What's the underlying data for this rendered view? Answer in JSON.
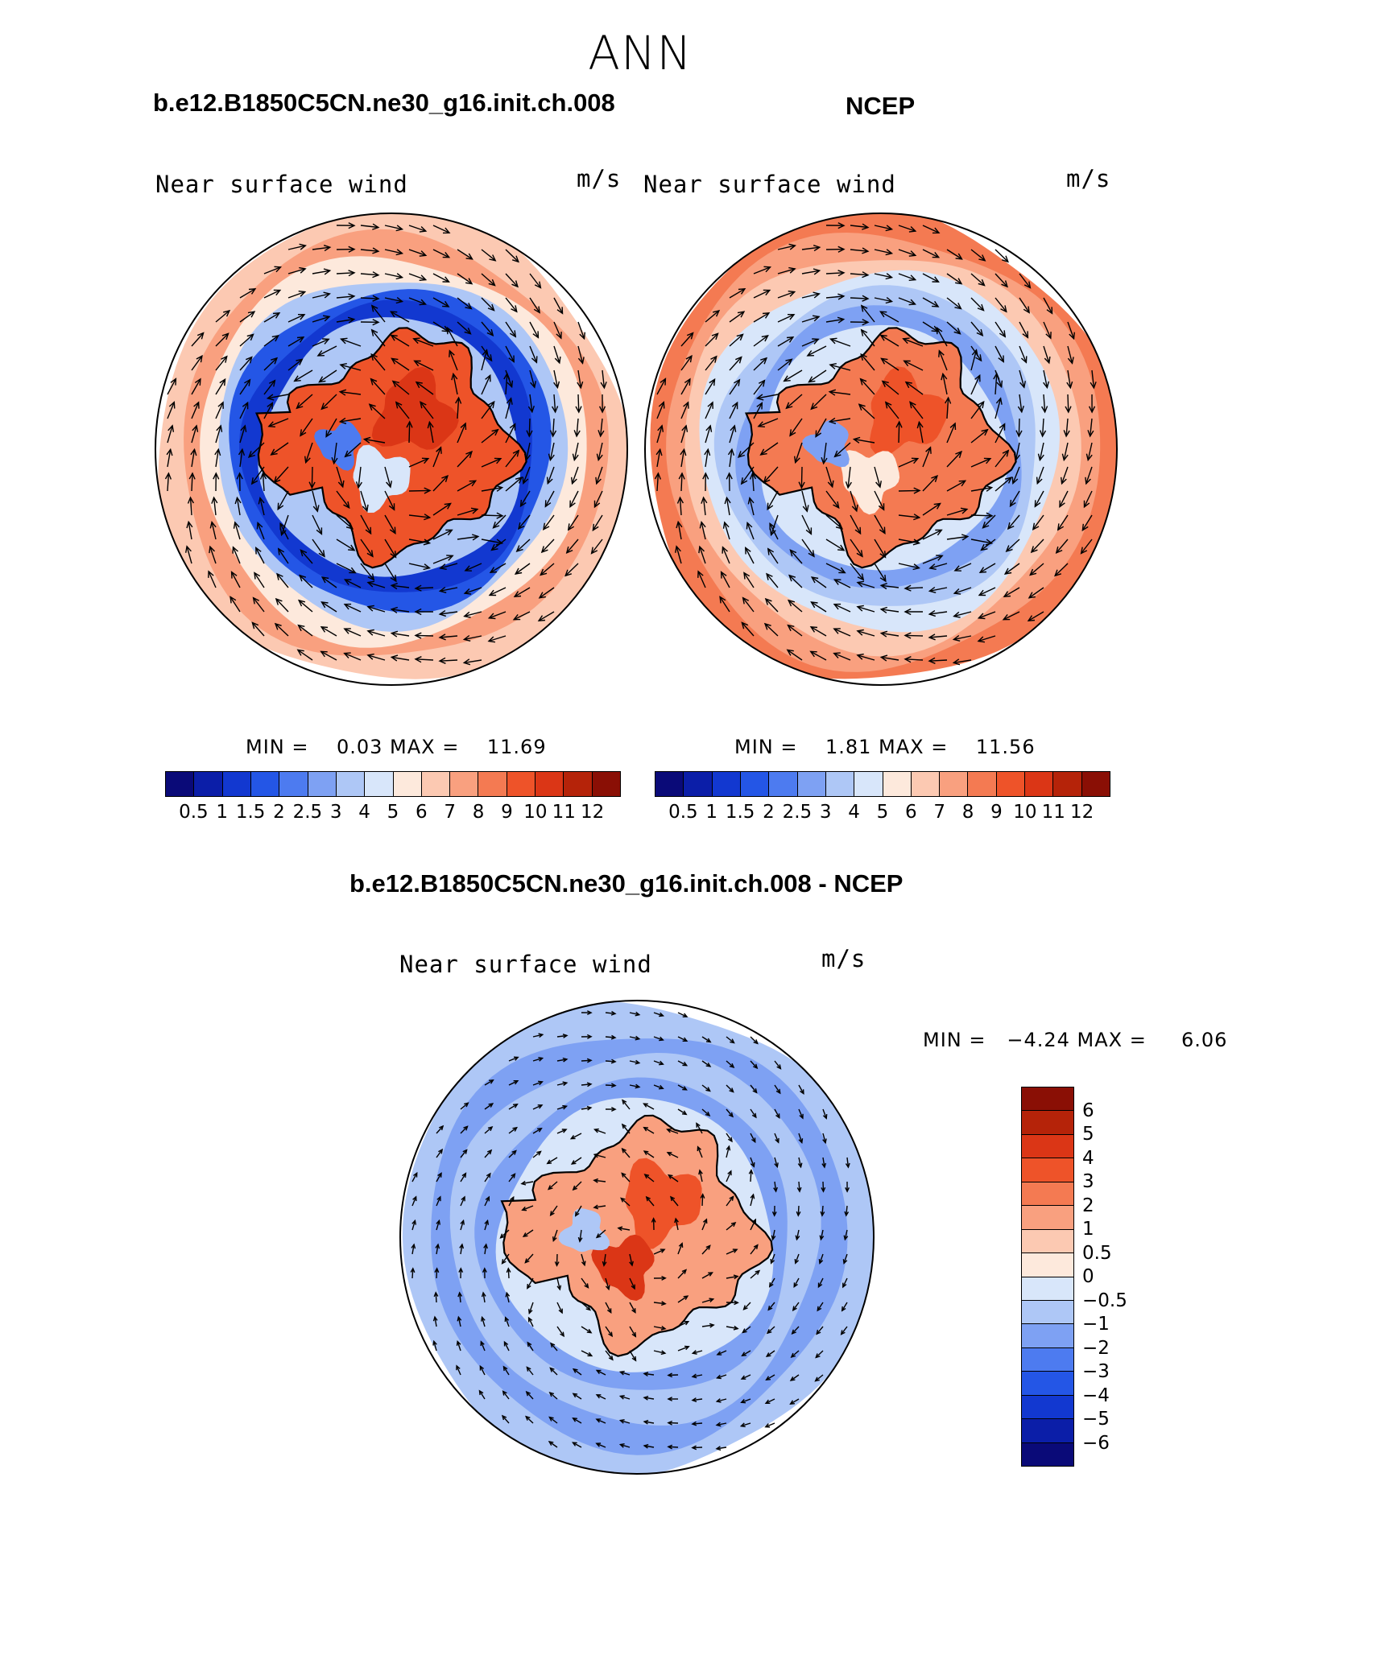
{
  "figure": {
    "season": "ANN"
  },
  "panels": [
    {
      "title": "b.e12.B1850C5CN.ne30_g16.init.ch.008",
      "left_label": "Near surface wind",
      "right_label": "m/s",
      "minmax": "MIN =    0.03 MAX =    11.69",
      "style": "model"
    },
    {
      "title": "NCEP",
      "left_label": "Near surface wind",
      "right_label": "m/s",
      "minmax": "MIN =    1.81 MAX =    11.56",
      "style": "obs"
    },
    {
      "title": "b.e12.B1850C5CN.ne30_g16.init.ch.008 - NCEP",
      "left_label": "Near surface wind",
      "right_label": "m/s",
      "minmax": "MIN =   −4.24 MAX =     6.06",
      "style": "diff"
    }
  ],
  "colorbar_abs": {
    "colors": [
      "#0a0a78",
      "#0b1ea8",
      "#1238d0",
      "#2456e6",
      "#4d7bf0",
      "#7ea1f3",
      "#aec7f6",
      "#d8e6fa",
      "#fde9dc",
      "#fcc9b2",
      "#f9a07f",
      "#f47a52",
      "#ee5329",
      "#db3616",
      "#b52309",
      "#8a0f05"
    ],
    "labels": [
      "0.5",
      "1",
      "1.5",
      "2",
      "2.5",
      "3",
      "4",
      "5",
      "6",
      "7",
      "8",
      "9",
      "10",
      "11",
      "12"
    ]
  },
  "colorbar_diff": {
    "colors": [
      "#8a0f05",
      "#b52309",
      "#db3616",
      "#ee5329",
      "#f47a52",
      "#f9a07f",
      "#fcc9b2",
      "#fde9dc",
      "#d8e6fa",
      "#aec7f6",
      "#7ea1f3",
      "#4d7bf0",
      "#2456e6",
      "#1238d0",
      "#0b1ea8",
      "#0a0a78"
    ],
    "labels": [
      "6",
      "5",
      "4",
      "3",
      "2",
      "1",
      "0.5",
      "0",
      "−0.5",
      "−1",
      "−2",
      "−3",
      "−4",
      "−5",
      "−6"
    ]
  }
}
